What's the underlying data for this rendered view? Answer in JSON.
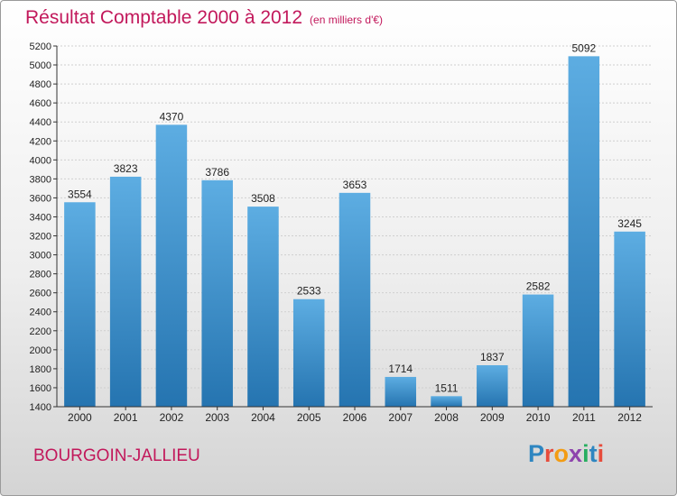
{
  "header": {
    "title": "Résultat Comptable 2000 à 2012",
    "unit": "(en milliers d'€)"
  },
  "footer": {
    "commune": "BOURGOIN-JALLIEU",
    "logo_letters": [
      "P",
      "r",
      "o",
      "x",
      "i",
      "t",
      "i"
    ],
    "logo_colors": [
      "#2e86c1",
      "#e74c3c",
      "#f39c12",
      "#8e44ad",
      "#27ae60",
      "#2e86c1",
      "#e74c3c"
    ]
  },
  "colors": {
    "bar_top": "#5dade2",
    "bar_bottom": "#2574b0",
    "title": "#c2185b",
    "axis": "#333333"
  },
  "chart_data": {
    "type": "bar",
    "categories": [
      "2000",
      "2001",
      "2002",
      "2003",
      "2004",
      "2005",
      "2006",
      "2007",
      "2008",
      "2009",
      "2010",
      "2011",
      "2012"
    ],
    "values": [
      3554,
      3823,
      4370,
      3786,
      3508,
      2533,
      3653,
      1714,
      1511,
      1837,
      2582,
      5092,
      3245
    ],
    "title": "Résultat Comptable 2000 à 2012",
    "subtitle": "(en milliers d'€)",
    "xlabel": "",
    "ylabel": "",
    "ylim": [
      1400,
      5200
    ],
    "yticks": [
      1400,
      1600,
      1800,
      2000,
      2200,
      2400,
      2600,
      2800,
      3000,
      3200,
      3400,
      3600,
      3800,
      4000,
      4200,
      4400,
      4600,
      4800,
      5000,
      5200
    ],
    "grid": true,
    "legend": "none"
  }
}
